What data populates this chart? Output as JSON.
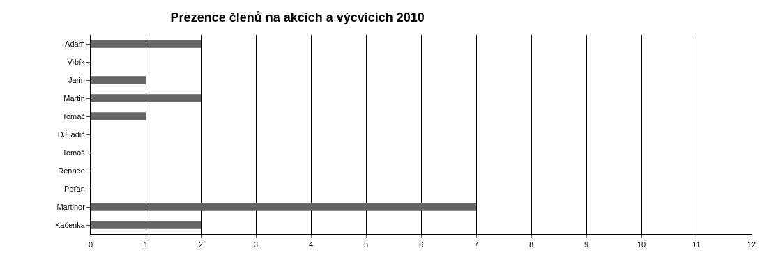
{
  "chart_data": {
    "type": "bar",
    "orientation": "horizontal",
    "title": "Prezence členů na akcích a výcvicích 2010",
    "categories": [
      "Adam",
      "Vrbík",
      "Jarin",
      "Martin",
      "Tomáč",
      "DJ ladič",
      "Tomáš",
      "Rennee",
      "Peťan",
      "Martinor",
      "Kačenka"
    ],
    "values": [
      2,
      0,
      1,
      2,
      1,
      0,
      0,
      0,
      0,
      7,
      2
    ],
    "color": "#666666",
    "xlim": [
      0,
      12
    ],
    "xticks": [
      0,
      1,
      2,
      3,
      4,
      5,
      6,
      7,
      8,
      9,
      10,
      11,
      12
    ],
    "grid": "x"
  }
}
